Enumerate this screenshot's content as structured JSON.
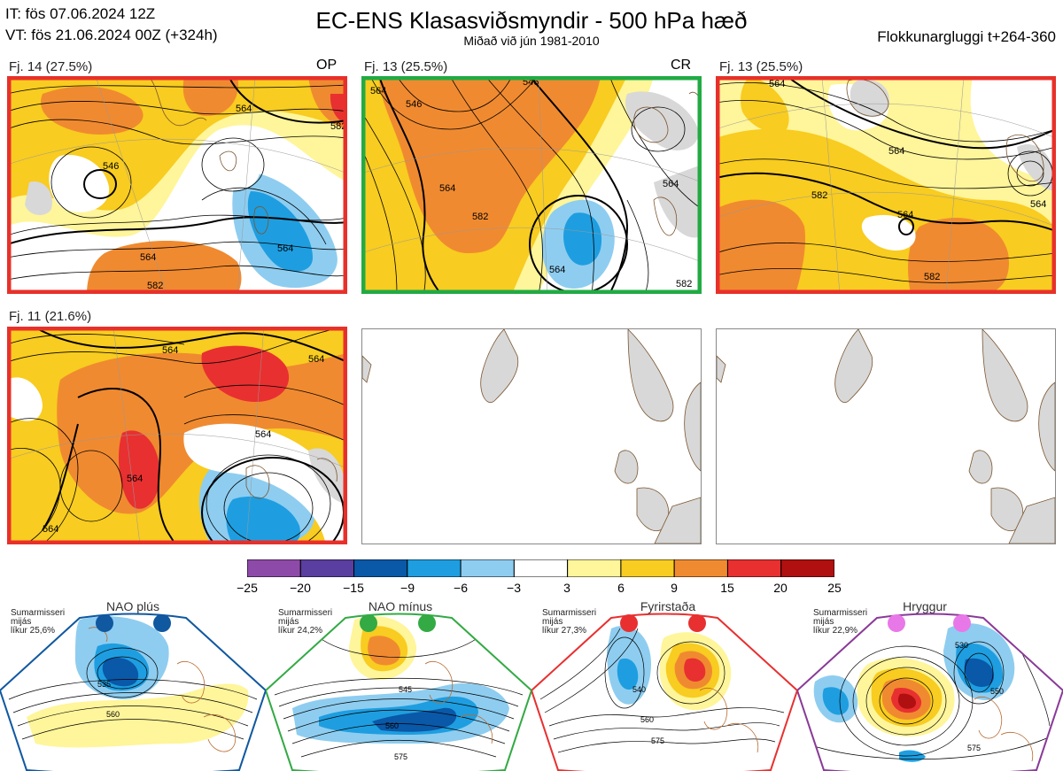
{
  "header": {
    "it_line": "IT: fös 07.06.2024 12Z",
    "vt_line": "VT: fös 21.06.2024 00Z  (+324h)",
    "title": "EC-ENS Klasasviðsmyndir - 500 hPa hæð",
    "subtitle": "Miðað við jún 1981-2010",
    "window": "Flokkunargluggi t+264-360"
  },
  "panels": [
    {
      "label": "Fj. 14 (27.5%)",
      "tag": "OP",
      "frame_color": "#e8302a",
      "contours": [
        "546",
        "564",
        "564",
        "582",
        "564",
        "582"
      ]
    },
    {
      "label": "Fj. 13 (25.5%)",
      "tag": "CR",
      "frame_color": "#22aa44",
      "contours": [
        "546",
        "564",
        "582",
        "564",
        "564",
        "582",
        "546",
        "564"
      ]
    },
    {
      "label": "Fj. 13 (25.5%)",
      "tag": "",
      "frame_color": "#e8302a",
      "contours": [
        "564",
        "582",
        "564",
        "582",
        "564",
        "564"
      ]
    },
    {
      "label": "Fj. 11 (21.6%)",
      "tag": "",
      "frame_color": "#e8302a",
      "contours": [
        "564",
        "564",
        "564",
        "564",
        "564"
      ]
    }
  ],
  "colorbar": {
    "ticks": [
      "−25",
      "−20",
      "−15",
      "−9",
      "−6",
      "−3",
      "3",
      "6",
      "9",
      "15",
      "20",
      "25"
    ],
    "colors": [
      "#8e4aa8",
      "#5a3ea0",
      "#0a58a8",
      "#1e9ee0",
      "#8ecdf0",
      "#ffffff",
      "#fff59a",
      "#f8cc20",
      "#f08a30",
      "#e83030",
      "#b01010"
    ]
  },
  "regimes": [
    {
      "name": "NAO plús",
      "note": [
        "Sumarmisseri",
        "mijás",
        "líkur 25,6%"
      ],
      "color": "#1058a0",
      "dot_color": "#1058a0",
      "contours": [
        "535",
        "560"
      ]
    },
    {
      "name": "NAO mínus",
      "note": [
        "Sumarmisseri",
        "mijás",
        "líkur 24,2%"
      ],
      "color": "#33aa44",
      "dot_color": "#33aa44",
      "contours": [
        "545",
        "560",
        "575"
      ]
    },
    {
      "name": "Fyrirstaða",
      "note": [
        "Sumarmisseri",
        "mijás",
        "líkur 27,3%"
      ],
      "color": "#e83030",
      "dot_color": "#e83030",
      "contours": [
        "540",
        "560",
        "575"
      ]
    },
    {
      "name": "Hryggur",
      "note": [
        "Sumarmisseri",
        "mijás",
        "líkur 22,9%"
      ],
      "color": "#8a3a98",
      "dot_color": "#e878e8",
      "contours": [
        "530",
        "550",
        "575"
      ]
    }
  ]
}
